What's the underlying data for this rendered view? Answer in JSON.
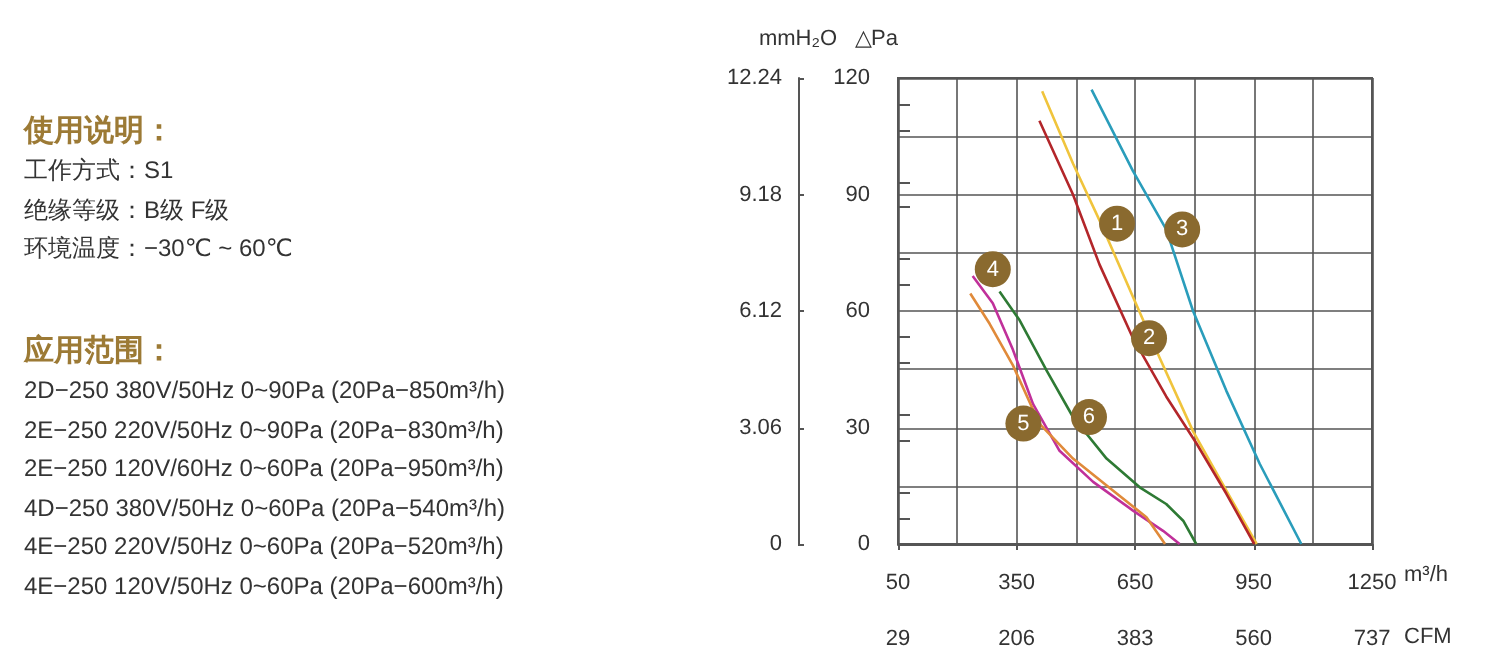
{
  "chart_data": [
    {
      "type": "other",
      "title": "使用说明：",
      "annotations": [
        "工作方式：S1",
        "绝缘等级：B级  F级",
        "环境温度：−30℃ ~ 60℃"
      ]
    },
    {
      "type": "other",
      "title": "应用范围：",
      "annotations": [
        "2D−250  380V/50Hz  0~90Pa   (20Pa−850m³/h)",
        "2E−250  220V/50Hz  0~90Pa   (20Pa−830m³/h)",
        "2E−250  120V/60Hz  0~60Pa   (20Pa−950m³/h)",
        "4D−250  380V/50Hz  0~60Pa   (20Pa−540m³/h)",
        "4E−250  220V/50Hz  0~60Pa   (20Pa−520m³/h)",
        "4E−250  120V/50Hz  0~60Pa   (20Pa−600m³/h)"
      ]
    },
    {
      "type": "line",
      "xlabel": "m³/h",
      "ylabel": "△Pa",
      "y2label": "mmH₂O",
      "x2label": "CFM",
      "grid": true,
      "xlim": [
        50,
        1250
      ],
      "xticks": [
        50,
        {
          "value": 200,
          "label": null
        },
        350,
        {
          "value": 500,
          "label": null
        },
        650,
        {
          "value": 800,
          "label": null
        },
        950,
        {
          "value": 1100,
          "label": null
        },
        1250
      ],
      "ylim": [
        0,
        120
      ],
      "yticks": [
        0,
        {
          "value": 15,
          "label": null
        },
        30,
        {
          "value": 45,
          "label": null
        },
        60,
        {
          "value": 75,
          "label": null
        },
        90,
        {
          "value": 105,
          "label": null
        },
        120
      ],
      "y2lim": [
        0,
        12.24
      ],
      "y2ticks": [
        0,
        3.06,
        6.12,
        9.18,
        12.24
      ],
      "x2lim": [
        29,
        737
      ],
      "x2ticks": [
        29,
        206,
        383,
        560,
        737
      ],
      "series": [
        {
          "name": "1",
          "color": "#f0c43c",
          "x": [
            415,
            493,
            564,
            645,
            712,
            797,
            881,
            958
          ],
          "values": [
            116.6,
            98,
            82.5,
            63.6,
            48,
            29,
            13.8,
            0
          ]
        },
        {
          "name": "2",
          "color": "#b3262a",
          "x": [
            408,
            493,
            560,
            645,
            729,
            805,
            881,
            952
          ],
          "values": [
            109,
            90,
            72,
            53,
            38,
            26,
            13,
            0
          ]
        },
        {
          "name": "3",
          "color": "#2a9dbb",
          "x": [
            540,
            645,
            729,
            797,
            881,
            966,
            1071
          ],
          "values": [
            117,
            96,
            81,
            60,
            39.5,
            20.6,
            0
          ]
        },
        {
          "name": "4",
          "color": "#c0309a",
          "x": [
            239,
            290,
            341,
            392,
            459,
            544,
            645,
            721,
            763
          ],
          "values": [
            69,
            62,
            50,
            36,
            24,
            16,
            8.6,
            3.4,
            0
          ]
        },
        {
          "name": "5",
          "color": "#e08a3a",
          "x": [
            233,
            282,
            341,
            408,
            493,
            594,
            679,
            726
          ],
          "values": [
            64.5,
            56.7,
            46,
            31,
            22,
            13.8,
            6.9,
            0
          ]
        },
        {
          "name": "6",
          "color": "#2e7a34",
          "x": [
            307,
            358,
            426,
            493,
            578,
            662,
            729,
            772,
            805
          ],
          "values": [
            65,
            57.6,
            44.7,
            32.7,
            22,
            14.6,
            10.3,
            6,
            0
          ]
        }
      ]
    }
  ]
}
